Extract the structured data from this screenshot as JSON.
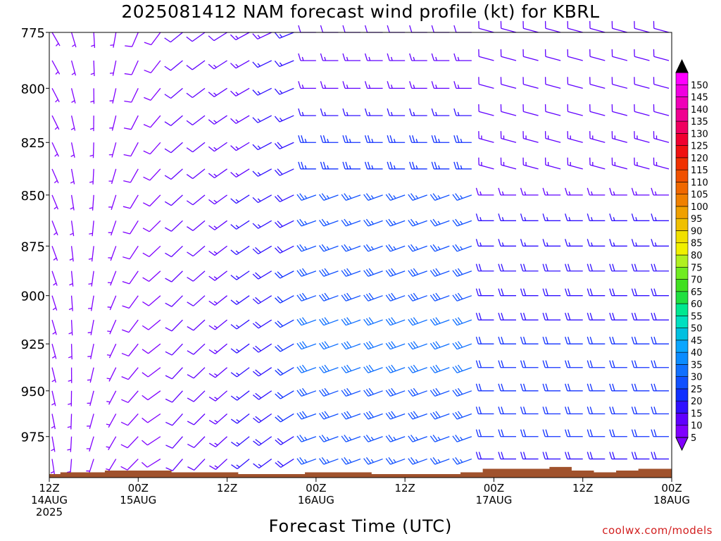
{
  "title": "2025081412 NAM forecast wind profile (kt) for KBRL",
  "credit": "coolwx.com/models",
  "chart_data": {
    "type": "wind-barb-profile",
    "title": "2025081412 NAM forecast wind profile (kt) for KBRL",
    "xlabel": "Forecast Time (UTC)",
    "ylabel": "",
    "units": "kt",
    "y_axis": {
      "ticks": [
        775,
        800,
        825,
        850,
        875,
        900,
        925,
        950,
        975
      ],
      "range": [
        998,
        775
      ],
      "pressure_log_scale": true
    },
    "x_axis": {
      "range_hours": [
        0,
        84
      ],
      "ticks": [
        {
          "h": 0,
          "lines": [
            "12Z",
            "14AUG",
            "2025"
          ]
        },
        {
          "h": 12,
          "lines": [
            "00Z",
            "15AUG"
          ]
        },
        {
          "h": 24,
          "lines": [
            "12Z"
          ]
        },
        {
          "h": 36,
          "lines": [
            "00Z",
            "16AUG"
          ]
        },
        {
          "h": 48,
          "lines": [
            "12Z"
          ]
        },
        {
          "h": 60,
          "lines": [
            "00Z",
            "17AUG"
          ]
        },
        {
          "h": 72,
          "lines": [
            "12Z"
          ]
        },
        {
          "h": 84,
          "lines": [
            "00Z",
            "18AUG"
          ]
        }
      ]
    },
    "colorbar": {
      "levels": [
        5,
        10,
        15,
        20,
        25,
        30,
        35,
        40,
        45,
        50,
        55,
        60,
        65,
        70,
        75,
        80,
        85,
        90,
        95,
        100,
        105,
        110,
        115,
        120,
        125,
        130,
        135,
        140,
        145,
        150
      ],
      "colors": [
        "#8000ff",
        "#6000ff",
        "#3010ff",
        "#1030ff",
        "#1050ff",
        "#1070ff",
        "#0b8cff",
        "#0aa6ff",
        "#00c0e0",
        "#00e0c0",
        "#00e890",
        "#20e040",
        "#40e020",
        "#70ec20",
        "#b0f020",
        "#f0f000",
        "#f0e000",
        "#f0c000",
        "#f0a000",
        "#f08000",
        "#f06800",
        "#f05000",
        "#f03000",
        "#f01010",
        "#f00030",
        "#f00060",
        "#f00090",
        "#f000b8",
        "#f000e0",
        "#ff00ff"
      ]
    },
    "pressure_levels": [
      775,
      787.5,
      800,
      812.5,
      825,
      837.5,
      850,
      862.5,
      875,
      887.5,
      900,
      912.5,
      925,
      937.5,
      950,
      962.5,
      975,
      987.5
    ],
    "wind_notes": "Barbs every 3 forecast hours; southwesterly to westerly 5-35 kt winds, strongest (25-35 kt) near 900-950 hPa during 16-17 Aug",
    "terrain": {
      "color": "#a0522d",
      "surface_pressure_by_hour": [
        [
          0,
          996
        ],
        [
          3,
          995
        ],
        [
          6,
          995
        ],
        [
          9,
          994
        ],
        [
          12,
          994
        ],
        [
          15,
          994
        ],
        [
          18,
          995
        ],
        [
          21,
          995
        ],
        [
          24,
          995
        ],
        [
          27,
          996
        ],
        [
          30,
          996
        ],
        [
          33,
          996
        ],
        [
          36,
          995
        ],
        [
          39,
          995
        ],
        [
          42,
          995
        ],
        [
          45,
          996
        ],
        [
          48,
          996
        ],
        [
          51,
          996
        ],
        [
          54,
          996
        ],
        [
          57,
          995
        ],
        [
          60,
          993
        ],
        [
          63,
          993
        ],
        [
          66,
          993
        ],
        [
          69,
          992
        ],
        [
          72,
          994
        ],
        [
          75,
          995
        ],
        [
          78,
          994
        ],
        [
          81,
          993
        ],
        [
          84,
          993
        ]
      ]
    }
  }
}
